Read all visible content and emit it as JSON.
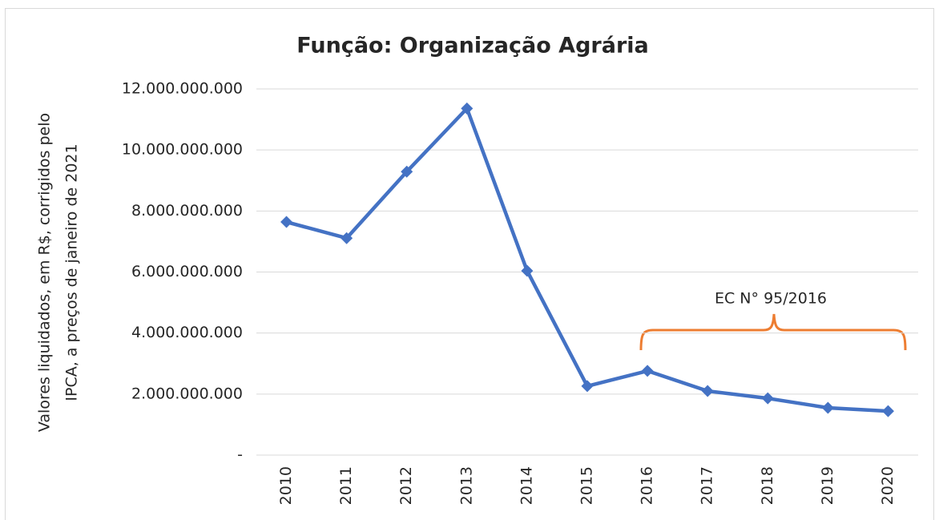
{
  "chart_data": {
    "type": "line",
    "title": "Função: Organização Agrária",
    "y_label": [
      "Valores liquidados, em R$, corrigidos pelo",
      "IPCA, a preços de janeiro de 2021"
    ],
    "annotation": "EC N° 95/2016",
    "categories": [
      "2010",
      "2011",
      "2012",
      "2013",
      "2014",
      "2015",
      "2016",
      "2017",
      "2018",
      "2019",
      "2020"
    ],
    "series": [
      {
        "name": "Organização Agrária",
        "color": "#4472c4",
        "values": [
          7640000000,
          7110000000,
          9290000000,
          11360000000,
          6040000000,
          2260000000,
          2760000000,
          2100000000,
          1860000000,
          1550000000,
          1440000000
        ]
      }
    ],
    "ylim": [
      0,
      12000000000
    ],
    "yticks": [
      {
        "value": 0,
        "label": "-"
      },
      {
        "value": 2000000000,
        "label": "2.000.000.000"
      },
      {
        "value": 4000000000,
        "label": "4.000.000.000"
      },
      {
        "value": 6000000000,
        "label": "6.000.000.000"
      },
      {
        "value": 8000000000,
        "label": "8.000.000.000"
      },
      {
        "value": 10000000000,
        "label": "10.000.000.000"
      },
      {
        "value": 12000000000,
        "label": "12.000.000.000"
      }
    ],
    "grid": true
  }
}
